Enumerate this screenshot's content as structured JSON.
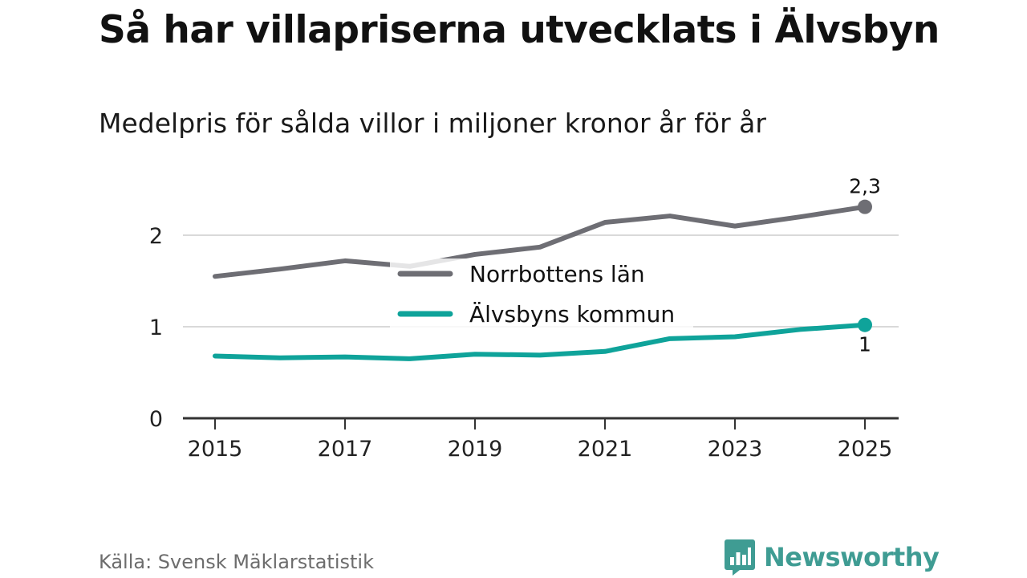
{
  "title": "Så har villapriserna utvecklats i Älvsbyn",
  "subtitle": "Medelpris för sålda villor i miljoner kronor år för år",
  "source": "Källa: Svensk Mäklarstatistik",
  "brand": {
    "name": "Newsworthy",
    "icon": "newsworthy-logo-icon",
    "color": "#3f9c93"
  },
  "chart_data": {
    "type": "line",
    "title": "Så har villapriserna utvecklats i Älvsbyn",
    "subtitle": "Medelpris för sålda villor i miljoner kronor år för år",
    "xlabel": "",
    "ylabel": "",
    "x": [
      2015,
      2016,
      2017,
      2018,
      2019,
      2020,
      2021,
      2022,
      2023,
      2024,
      2025
    ],
    "x_ticks": [
      "2015",
      "2017",
      "2019",
      "2021",
      "2023",
      "2025"
    ],
    "y_ticks": [
      "0",
      "1",
      "2"
    ],
    "xlim": [
      2015,
      2025
    ],
    "ylim": [
      0,
      2.5
    ],
    "grid": true,
    "legend_position": "center",
    "series": [
      {
        "name": "Norrbottens län",
        "color": "#6e6e74",
        "values": [
          1.55,
          1.63,
          1.72,
          1.66,
          1.79,
          1.87,
          2.14,
          2.21,
          2.1,
          2.2,
          2.31
        ],
        "end_label": "2,3"
      },
      {
        "name": "Älvsbyns kommun",
        "color": "#0fa39a",
        "values": [
          0.68,
          0.66,
          0.67,
          0.65,
          0.7,
          0.69,
          0.73,
          0.87,
          0.89,
          0.97,
          1.02
        ],
        "end_label": "1"
      }
    ]
  }
}
